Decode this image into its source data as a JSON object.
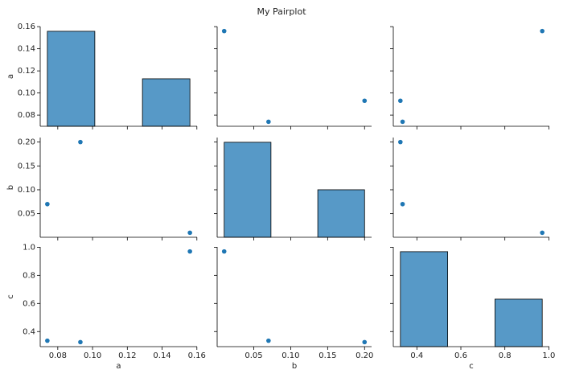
{
  "chart_data": {
    "type": "pairplot",
    "title": "My Pairplot",
    "color": "#1f77b4",
    "hist_ylim": [
      0,
      2.1
    ],
    "variables": [
      {
        "name": "a",
        "values": [
          0.156,
          0.074,
          0.093
        ],
        "lim": [
          0.0699,
          0.1601
        ],
        "ticks": [
          0.08,
          {
            "value": 0.1,
            "label": "0.10"
          },
          0.12,
          0.14,
          0.16
        ],
        "bins": [
          0.074,
          0.1013,
          0.1287,
          0.156
        ],
        "counts": [
          2,
          0,
          1
        ]
      },
      {
        "name": "b",
        "values": [
          0.01,
          0.07,
          0.2
        ],
        "lim": [
          0.0005,
          0.2095
        ],
        "ticks": [
          0.05,
          {
            "value": 0.1,
            "label": "0.10"
          },
          0.15,
          {
            "value": 0.2,
            "label": "0.20"
          }
        ],
        "bins": [
          0.01,
          0.0733,
          0.1367,
          0.2
        ],
        "counts": [
          2,
          0,
          1
        ]
      },
      {
        "name": "c",
        "values": [
          0.97,
          0.335,
          0.325
        ],
        "lim": [
          0.29275,
          1.00225
        ],
        "ticks": [
          0.4,
          0.6,
          0.8,
          {
            "value": 1,
            "label": "1.0"
          }
        ],
        "bins": [
          0.325,
          0.54,
          0.755,
          0.97
        ],
        "counts": [
          2,
          0,
          1
        ]
      }
    ]
  }
}
